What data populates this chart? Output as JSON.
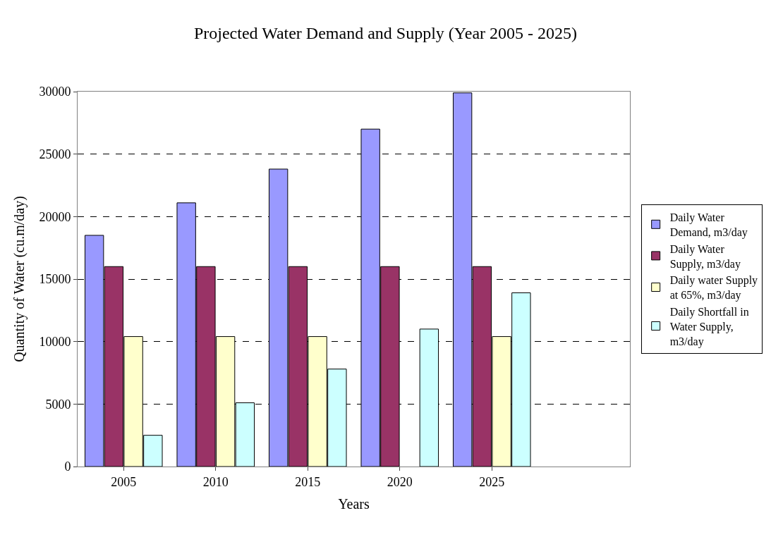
{
  "chart_data": {
    "type": "bar",
    "title": "Projected Water Demand and Supply (Year 2005 - 2025)",
    "xlabel": "Years",
    "ylabel": "Quantity of Water (cu.m/day)",
    "categories": [
      "2005",
      "2010",
      "2015",
      "2020",
      "2025",
      null
    ],
    "series": [
      {
        "name": "Daily Water Demand, m3/day",
        "color": "#9999ff",
        "values": [
          18500,
          21100,
          23800,
          27000,
          29900,
          null
        ]
      },
      {
        "name": "Daily Water Supply, m3/day",
        "color": "#993366",
        "values": [
          16000,
          16000,
          16000,
          16000,
          16000,
          null
        ]
      },
      {
        "name": "Daily water Supply at 65%, m3/day",
        "color": "#ffffcc",
        "values": [
          10400,
          10400,
          10400,
          null,
          10400,
          null
        ]
      },
      {
        "name": "Daily Shortfall in Water Supply, m3/day",
        "color": "#ccffff",
        "values": [
          2500,
          5100,
          7800,
          11000,
          13900,
          null
        ]
      }
    ],
    "ylim": [
      0,
      30000
    ],
    "yticks": [
      0,
      5000,
      10000,
      15000,
      20000,
      25000,
      30000
    ],
    "grid": "y",
    "legend": "right"
  }
}
